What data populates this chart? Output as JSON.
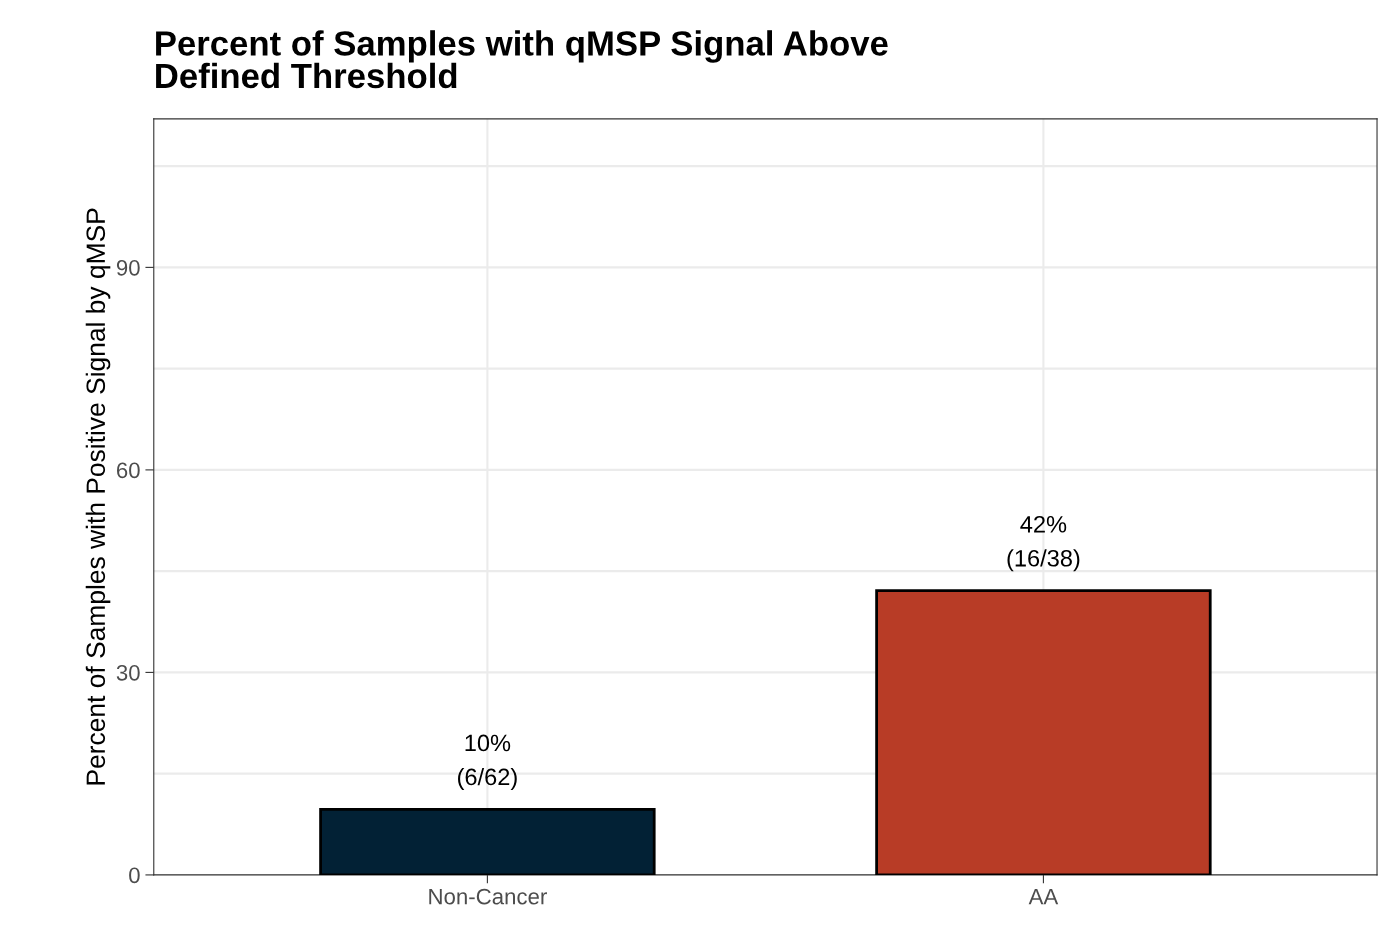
{
  "chart_data": {
    "type": "bar",
    "title": "Percent of Samples with qMSP Signal Above\nDefined Threshold",
    "ylabel": "Percent of Samples with Positive Signal by qMSP",
    "categories": [
      "Non-Cancer",
      "AA"
    ],
    "values": [
      9.7,
      42.1
    ],
    "colors": [
      "#022135",
      "#b83c26"
    ],
    "value_labels": [
      "10%\n(6/62)",
      "42%\n(16/38)"
    ],
    "ylim": [
      0,
      112
    ],
    "yticks": [
      0,
      {
        "value": 15,
        "label": null
      },
      30,
      {
        "value": 45,
        "label": null
      },
      60,
      {
        "value": 75,
        "label": null
      },
      90,
      {
        "value": 105,
        "label": null
      }
    ],
    "grid": true
  }
}
